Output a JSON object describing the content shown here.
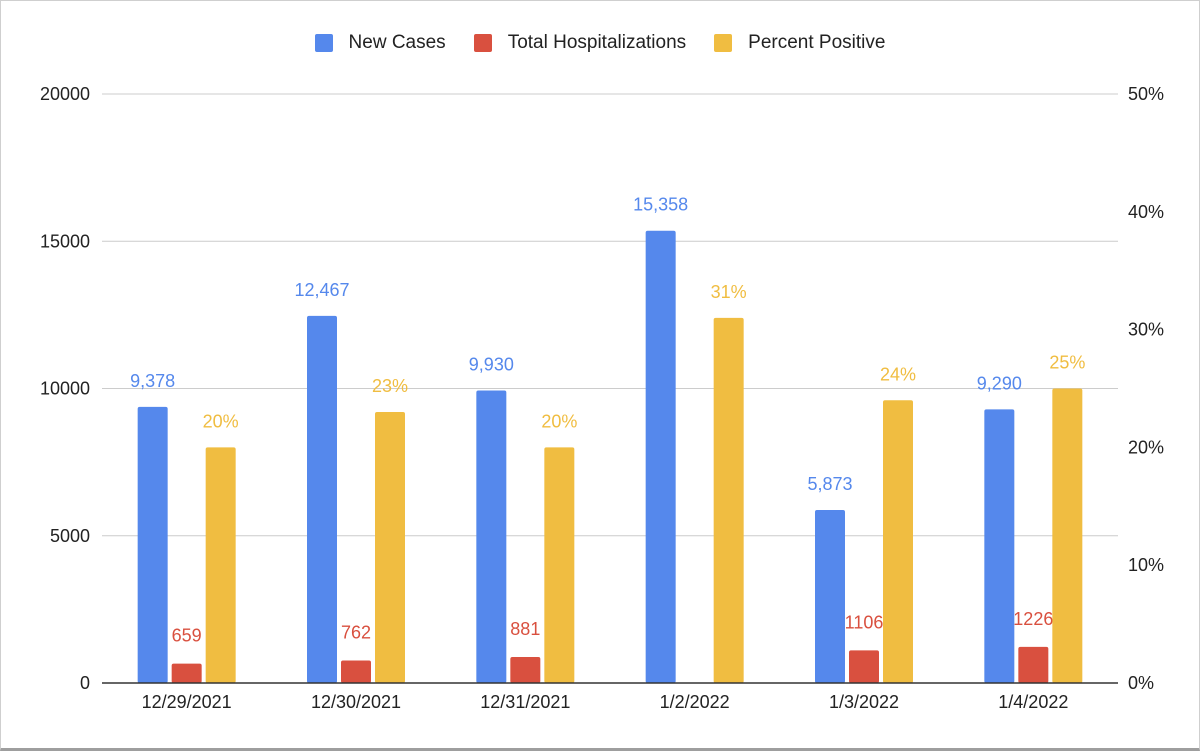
{
  "chart_data": {
    "type": "bar",
    "categories": [
      "12/29/2021",
      "12/30/2021",
      "12/31/2021",
      "1/2/2022",
      "1/3/2022",
      "1/4/2022"
    ],
    "series": [
      {
        "name": "New Cases",
        "axis": "left",
        "color": "#5588ec",
        "label_color": "#5588ec",
        "values": [
          9378,
          12467,
          9930,
          15358,
          5873,
          9290
        ],
        "labels": [
          "9,378",
          "12,467",
          "9,930",
          "15,358",
          "5,873",
          "9,290"
        ]
      },
      {
        "name": "Total Hospitalizations",
        "axis": "left",
        "color": "#d9503f",
        "label_color": "#d9503f",
        "values": [
          659,
          762,
          881,
          null,
          1106,
          1226
        ],
        "labels": [
          "659",
          "762",
          "881",
          "",
          "1106",
          "1226"
        ]
      },
      {
        "name": "Percent Positive",
        "axis": "right",
        "color": "#f0bd41",
        "label_color": "#f0bd41",
        "values": [
          20,
          23,
          20,
          31,
          24,
          25
        ],
        "labels": [
          "20%",
          "23%",
          "20%",
          "31%",
          "24%",
          "25%"
        ]
      }
    ],
    "y_left": {
      "min": 0,
      "max": 20000,
      "ticks": [
        "0",
        "5000",
        "10000",
        "15000",
        "20000"
      ]
    },
    "y_right": {
      "min": 0,
      "max": 50,
      "ticks": [
        "0%",
        "10%",
        "20%",
        "30%",
        "40%",
        "50%"
      ]
    },
    "grid": true,
    "legend_position": "top-center"
  }
}
